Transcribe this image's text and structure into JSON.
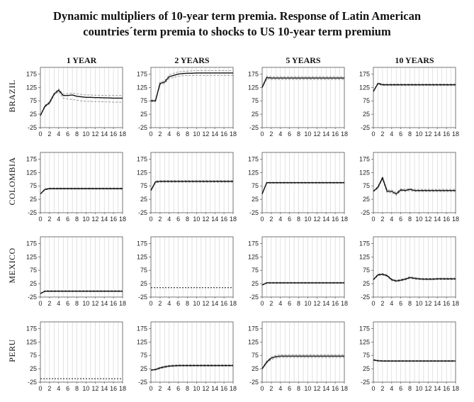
{
  "figure": {
    "title_line1": "Dynamic multipliers of 10-year term premia. Response of Latin American",
    "title_line2": "countries´term premia to shocks to US 10-year term premium"
  },
  "colors": {
    "mean": "#111111",
    "band": "#8c8c8c",
    "grid": "#cfcfcf",
    "axis": "#555555"
  },
  "chart_data": {
    "type": "line",
    "layout": "grid 4x4",
    "columns": [
      "1 YEAR",
      "2 YEARS",
      "5 YEARS",
      "10 YEARS"
    ],
    "rows": [
      "BRAZIL",
      "COLOMBIA",
      "MEXICO",
      "PERU"
    ],
    "x": [
      0,
      1,
      2,
      3,
      4,
      5,
      6,
      7,
      8,
      9,
      10,
      11,
      12,
      13,
      14,
      15,
      16,
      17,
      18
    ],
    "x_tick_labels": [
      "0",
      "2",
      "4",
      "6",
      "8",
      "10",
      "12",
      "14",
      "16",
      "18"
    ],
    "y_tick_labels": [
      "175",
      "125",
      "75",
      "25",
      "-25"
    ],
    "ylim": [
      -25,
      200
    ],
    "panels": [
      {
        "row": "BRAZIL",
        "column": "1 YEAR",
        "mean": [
          20,
          55,
          68,
          100,
          115,
          95,
          95,
          97,
          92,
          90,
          88,
          88,
          87,
          87,
          86,
          86,
          85,
          85,
          85
        ],
        "upper": [
          22,
          58,
          72,
          104,
          120,
          100,
          102,
          104,
          101,
          99,
          97,
          97,
          96,
          96,
          95,
          95,
          95,
          95,
          95
        ],
        "lower": [
          18,
          52,
          64,
          96,
          110,
          85,
          82,
          80,
          77,
          75,
          73,
          73,
          72,
          72,
          71,
          71,
          70,
          70,
          70
        ]
      },
      {
        "row": "BRAZIL",
        "column": "2 YEARS",
        "mean": [
          75,
          75,
          140,
          145,
          165,
          170,
          175,
          177,
          178,
          178,
          179,
          179,
          179,
          179,
          179,
          179,
          179,
          179,
          179
        ],
        "upper": [
          78,
          78,
          145,
          150,
          172,
          178,
          183,
          185,
          186,
          187,
          188,
          188,
          188,
          188,
          188,
          188,
          188,
          188,
          188
        ],
        "lower": [
          72,
          72,
          135,
          140,
          158,
          162,
          167,
          169,
          170,
          170,
          170,
          170,
          170,
          170,
          170,
          170,
          170,
          170,
          170
        ]
      },
      {
        "row": "BRAZIL",
        "column": "5 YEARS",
        "mean": [
          125,
          162,
          160,
          160,
          160,
          160,
          160,
          160,
          160,
          160,
          160,
          160,
          160,
          160,
          160,
          160,
          160,
          160,
          160
        ],
        "upper": [
          127,
          167,
          165,
          165,
          165,
          165,
          165,
          165,
          165,
          165,
          165,
          165,
          165,
          165,
          165,
          165,
          165,
          165,
          165
        ],
        "lower": [
          123,
          157,
          155,
          155,
          155,
          155,
          155,
          155,
          155,
          155,
          155,
          155,
          155,
          155,
          155,
          155,
          155,
          155,
          155
        ]
      },
      {
        "row": "BRAZIL",
        "column": "10 YEARS",
        "mean": [
          110,
          140,
          135,
          135,
          135,
          135,
          135,
          135,
          135,
          135,
          135,
          135,
          135,
          135,
          135,
          135,
          135,
          135,
          135
        ],
        "upper": [
          112,
          143,
          138,
          138,
          138,
          138,
          138,
          138,
          138,
          138,
          138,
          138,
          138,
          138,
          138,
          138,
          138,
          138,
          138
        ],
        "lower": [
          108,
          137,
          132,
          132,
          132,
          132,
          132,
          132,
          132,
          132,
          132,
          132,
          132,
          132,
          132,
          132,
          132,
          132,
          132
        ]
      },
      {
        "row": "COLOMBIA",
        "column": "1 YEAR",
        "mean": [
          45,
          62,
          65,
          65,
          65,
          65,
          65,
          65,
          65,
          65,
          65,
          65,
          65,
          65,
          65,
          65,
          65,
          65,
          65
        ],
        "upper": [
          46,
          64,
          67,
          67,
          67,
          67,
          67,
          67,
          67,
          67,
          67,
          67,
          67,
          67,
          67,
          67,
          67,
          67,
          67
        ],
        "lower": [
          44,
          60,
          63,
          63,
          63,
          63,
          63,
          63,
          63,
          63,
          63,
          63,
          63,
          63,
          63,
          63,
          63,
          63,
          63
        ]
      },
      {
        "row": "COLOMBIA",
        "column": "2 YEARS",
        "mean": [
          58,
          90,
          92,
          92,
          92,
          92,
          92,
          92,
          92,
          92,
          92,
          92,
          92,
          92,
          92,
          92,
          92,
          92,
          92
        ],
        "upper": [
          60,
          93,
          95,
          95,
          95,
          95,
          95,
          95,
          95,
          95,
          95,
          95,
          95,
          95,
          95,
          95,
          95,
          95,
          95
        ],
        "lower": [
          56,
          87,
          89,
          89,
          89,
          89,
          89,
          89,
          89,
          89,
          89,
          89,
          89,
          89,
          89,
          89,
          89,
          89,
          89
        ]
      },
      {
        "row": "COLOMBIA",
        "column": "5 YEARS",
        "mean": [
          45,
          87,
          87,
          87,
          87,
          87,
          87,
          87,
          87,
          87,
          87,
          87,
          87,
          87,
          87,
          87,
          87,
          87,
          87
        ],
        "upper": [
          46,
          89,
          89,
          89,
          89,
          89,
          89,
          89,
          89,
          89,
          89,
          89,
          89,
          89,
          89,
          89,
          89,
          89,
          89
        ],
        "lower": [
          44,
          85,
          85,
          85,
          85,
          85,
          85,
          85,
          85,
          85,
          85,
          85,
          85,
          85,
          85,
          85,
          85,
          85,
          85
        ]
      },
      {
        "row": "COLOMBIA",
        "column": "10 YEARS",
        "mean": [
          55,
          70,
          105,
          55,
          55,
          45,
          60,
          58,
          62,
          58,
          58,
          58,
          58,
          58,
          58,
          58,
          58,
          58,
          58
        ],
        "upper": [
          57,
          74,
          110,
          60,
          60,
          50,
          64,
          62,
          66,
          62,
          62,
          62,
          62,
          62,
          62,
          62,
          62,
          62,
          62
        ],
        "lower": [
          53,
          66,
          100,
          50,
          50,
          40,
          56,
          54,
          58,
          54,
          54,
          54,
          54,
          54,
          54,
          54,
          54,
          54,
          54
        ]
      },
      {
        "row": "MEXICO",
        "column": "1 YEAR",
        "mean": [
          -12,
          -3,
          -3,
          -3,
          -3,
          -3,
          -3,
          -3,
          -3,
          -3,
          -3,
          -3,
          -3,
          -3,
          -3,
          -3,
          -3,
          -3,
          -3
        ],
        "upper": [
          -11,
          -1,
          -1,
          -1,
          -1,
          -1,
          -1,
          -1,
          -1,
          -1,
          -1,
          -1,
          -1,
          -1,
          -1,
          -1,
          -1,
          -1,
          -1
        ],
        "lower": [
          -13,
          -5,
          -5,
          -5,
          -5,
          -5,
          -5,
          -5,
          -5,
          -5,
          -5,
          -5,
          -5,
          -5,
          -5,
          -5,
          -5,
          -5,
          -5
        ]
      },
      {
        "row": "MEXICO",
        "column": "2 YEARS",
        "mean": [
          10,
          10,
          10,
          10,
          10,
          10,
          10,
          10,
          10,
          10,
          10,
          10,
          10,
          10,
          10,
          10,
          10,
          10,
          10
        ],
        "upper": [
          10,
          10,
          10,
          10,
          10,
          10,
          10,
          10,
          10,
          10,
          10,
          10,
          10,
          10,
          10,
          10,
          10,
          10,
          10
        ],
        "lower": [
          10,
          10,
          10,
          10,
          10,
          10,
          10,
          10,
          10,
          10,
          10,
          10,
          10,
          10,
          10,
          10,
          10,
          10,
          10
        ]
      },
      {
        "row": "MEXICO",
        "column": "5 YEARS",
        "mean": [
          20,
          28,
          28,
          28,
          28,
          28,
          28,
          28,
          28,
          28,
          28,
          28,
          28,
          28,
          28,
          28,
          28,
          28,
          28
        ],
        "upper": [
          21,
          30,
          30,
          30,
          30,
          30,
          30,
          30,
          30,
          30,
          30,
          30,
          30,
          30,
          30,
          30,
          30,
          30,
          30
        ],
        "lower": [
          19,
          26,
          26,
          26,
          26,
          26,
          26,
          26,
          26,
          26,
          26,
          26,
          26,
          26,
          26,
          26,
          26,
          26,
          26
        ]
      },
      {
        "row": "MEXICO",
        "column": "10 YEARS",
        "mean": [
          40,
          58,
          60,
          55,
          40,
          35,
          38,
          42,
          48,
          45,
          43,
          42,
          42,
          42,
          43,
          43,
          43,
          43,
          43
        ],
        "upper": [
          42,
          61,
          63,
          58,
          43,
          38,
          41,
          45,
          51,
          48,
          46,
          45,
          45,
          45,
          46,
          46,
          46,
          46,
          46
        ],
        "lower": [
          38,
          55,
          57,
          52,
          37,
          32,
          35,
          39,
          45,
          42,
          40,
          39,
          39,
          39,
          40,
          40,
          40,
          40,
          40
        ]
      },
      {
        "row": "PERU",
        "column": "1 YEAR",
        "mean": [
          -12,
          -12,
          -12,
          -12,
          -12,
          -12,
          -12,
          -12,
          -12,
          -12,
          -12,
          -12,
          -12,
          -12,
          -12,
          -12,
          -12,
          -12,
          -12
        ],
        "upper": [
          -12,
          -12,
          -12,
          -12,
          -12,
          -12,
          -12,
          -12,
          -12,
          -12,
          -12,
          -12,
          -12,
          -12,
          -12,
          -12,
          -12,
          -12,
          -12
        ],
        "lower": [
          -12,
          -12,
          -12,
          -12,
          -12,
          -12,
          -12,
          -12,
          -12,
          -12,
          -12,
          -12,
          -12,
          -12,
          -12,
          -12,
          -12,
          -12,
          -12
        ]
      },
      {
        "row": "PERU",
        "column": "2 YEARS",
        "mean": [
          20,
          22,
          28,
          32,
          35,
          36,
          37,
          37,
          37,
          37,
          37,
          37,
          37,
          37,
          37,
          37,
          37,
          37,
          37
        ],
        "upper": [
          21,
          24,
          31,
          35,
          38,
          39,
          40,
          40,
          40,
          40,
          40,
          40,
          40,
          40,
          40,
          40,
          40,
          40,
          40
        ],
        "lower": [
          19,
          20,
          25,
          29,
          32,
          33,
          34,
          34,
          34,
          34,
          34,
          34,
          34,
          34,
          34,
          34,
          34,
          34,
          34
        ]
      },
      {
        "row": "PERU",
        "column": "5 YEARS",
        "mean": [
          25,
          50,
          65,
          70,
          72,
          72,
          72,
          72,
          72,
          72,
          72,
          72,
          72,
          72,
          72,
          72,
          72,
          72,
          72
        ],
        "upper": [
          27,
          54,
          70,
          75,
          77,
          77,
          77,
          77,
          77,
          77,
          77,
          77,
          77,
          77,
          77,
          77,
          77,
          77,
          77
        ],
        "lower": [
          23,
          46,
          60,
          65,
          67,
          67,
          67,
          67,
          67,
          67,
          67,
          67,
          67,
          67,
          67,
          67,
          67,
          67,
          67
        ]
      },
      {
        "row": "PERU",
        "column": "10 YEARS",
        "mean": [
          58,
          55,
          54,
          54,
          54,
          54,
          54,
          54,
          54,
          54,
          54,
          54,
          54,
          54,
          54,
          54,
          54,
          54,
          54
        ],
        "upper": [
          60,
          57,
          56,
          56,
          56,
          56,
          56,
          56,
          56,
          56,
          56,
          56,
          56,
          56,
          56,
          56,
          56,
          56,
          56
        ],
        "lower": [
          56,
          53,
          52,
          52,
          52,
          52,
          52,
          52,
          52,
          52,
          52,
          52,
          52,
          52,
          52,
          52,
          52,
          52,
          52
        ]
      }
    ]
  }
}
